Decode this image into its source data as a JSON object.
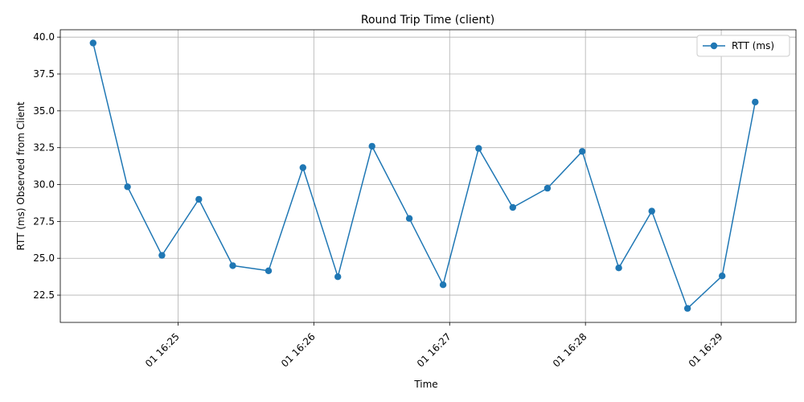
{
  "chart_data": {
    "type": "line",
    "title": "Round Trip Time (client)",
    "xlabel": "Time",
    "ylabel": "RTT (ms) Observed from Client",
    "x_ticks": [
      "01 16:25",
      "01 16:26",
      "01 16:27",
      "01 16:28",
      "01 16:29"
    ],
    "x_tick_values_min": [
      0,
      60,
      120,
      180,
      240
    ],
    "y_ticks": [
      "22.5",
      "25.0",
      "27.5",
      "30.0",
      "32.5",
      "35.0",
      "37.5",
      "40.0"
    ],
    "y_tick_values": [
      22.5,
      25.0,
      27.5,
      30.0,
      32.5,
      35.0,
      37.5,
      40.0
    ],
    "xlim_min": [
      -52,
      273
    ],
    "ylim": [
      20.65,
      40.5
    ],
    "grid": true,
    "legend_position": "top-right",
    "series": [
      {
        "name": "RTT (ms)",
        "color": "#1f77b4",
        "marker": "circle",
        "x_min": [
          -37.5,
          -22.3,
          -7.1,
          9.2,
          24.2,
          40.0,
          55.2,
          70.6,
          85.7,
          102.2,
          117.1,
          132.8,
          147.9,
          163.2,
          178.6,
          194.7,
          209.3,
          225.1,
          240.4,
          255.0
        ],
        "values": [
          39.6,
          29.85,
          25.2,
          29.0,
          24.5,
          24.15,
          31.15,
          23.75,
          32.6,
          27.7,
          23.2,
          32.45,
          28.45,
          29.75,
          32.25,
          24.35,
          28.2,
          21.6,
          23.8,
          35.6
        ]
      }
    ]
  }
}
